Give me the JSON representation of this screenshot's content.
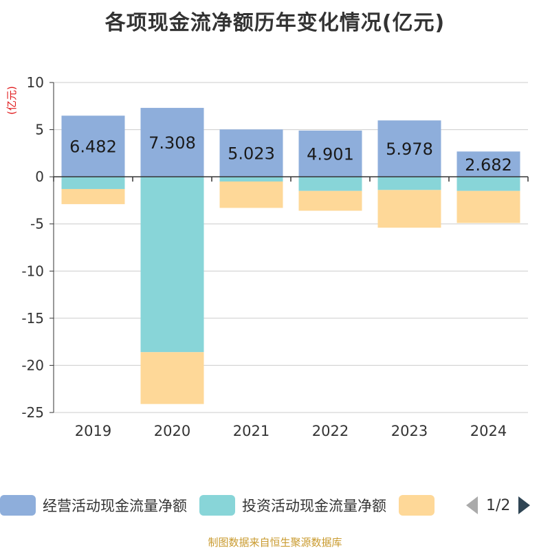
{
  "title": "各项现金流净额历年变化情况(亿元)",
  "source_note": "制图数据来自恒生聚源数据库",
  "legend": {
    "items": [
      {
        "label": "经营活动现金流量净额",
        "color": "#8eaedb"
      },
      {
        "label": "投资活动现金流量净额",
        "color": "#88d5d8"
      },
      {
        "label": "",
        "color": "#fed898"
      }
    ],
    "page_text": "1/2"
  },
  "chart_data": {
    "type": "bar",
    "stacked": true,
    "categories": [
      "2019",
      "2020",
      "2021",
      "2022",
      "2023",
      "2024"
    ],
    "series": [
      {
        "name": "经营活动现金流量净额",
        "color": "#8eaedb",
        "values": [
          6.482,
          7.308,
          5.023,
          4.901,
          5.978,
          2.682
        ],
        "labels": [
          "6.482",
          "7.308",
          "5.023",
          "4.901",
          "5.978",
          "2.682"
        ]
      },
      {
        "name": "投资活动现金流量净额",
        "color": "#88d5d8",
        "values": [
          -1.3,
          -18.6,
          -0.5,
          -1.5,
          -1.4,
          -1.5
        ]
      },
      {
        "name": "",
        "color": "#fed898",
        "values": [
          -1.6,
          -5.5,
          -2.8,
          -2.1,
          -4.0,
          -3.4
        ]
      }
    ],
    "ylabel": "(亿元)",
    "ylim": [
      -25,
      10
    ],
    "yticks": [
      10,
      5,
      0,
      -5,
      -10,
      -15,
      -20,
      -25
    ],
    "grid": true,
    "legend_position": "bottom"
  }
}
